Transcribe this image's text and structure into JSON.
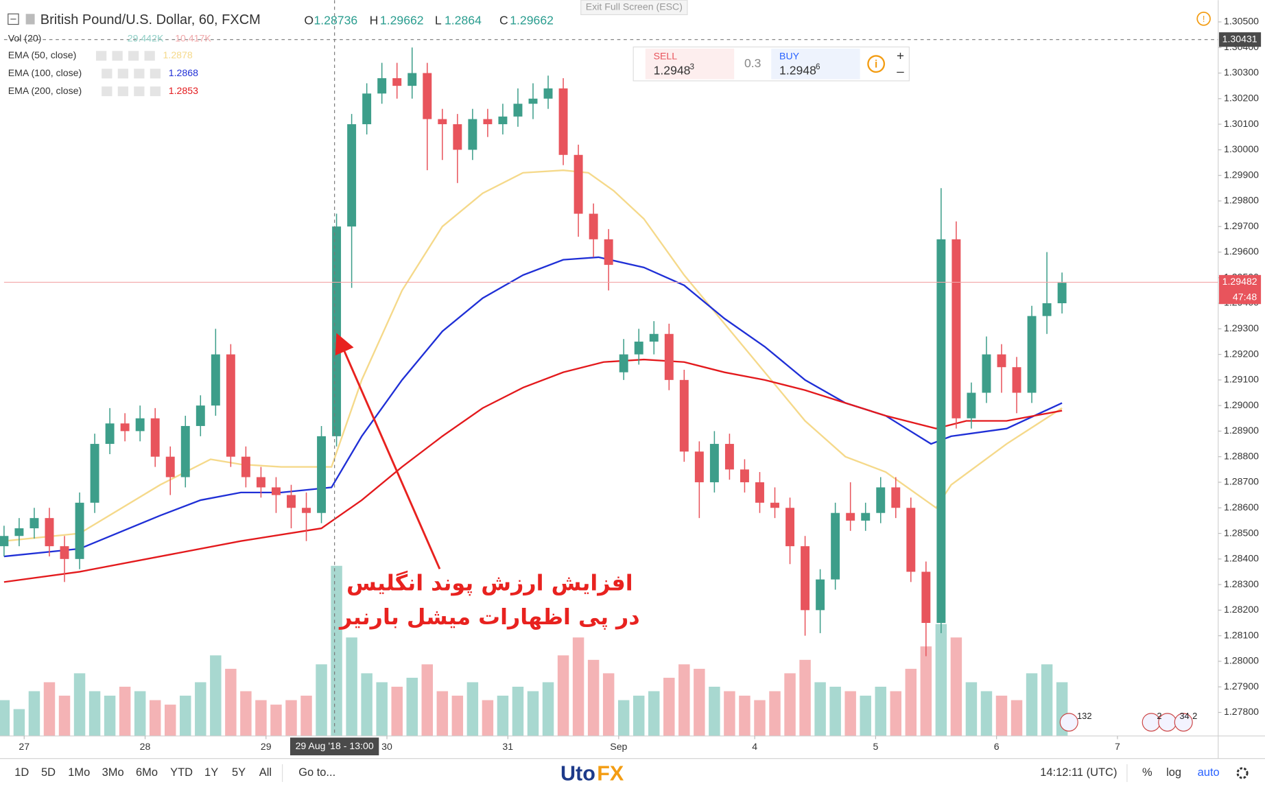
{
  "chart_data": {
    "type": "candlestick",
    "title": "British Pound/U.S. Dollar, 60, FXCM",
    "ohlc_legend": [
      {
        "label": "O",
        "value": 1.28736
      },
      {
        "label": "H",
        "value": 1.29662
      },
      {
        "label": "L",
        "value": 1.2864
      },
      {
        "label": "C",
        "value": 1.29662
      }
    ],
    "volume_name": "Vol (20)",
    "volume_readings": [
      "29.442K",
      "10.417K"
    ],
    "exit_fullscreen": "Exit Full Screen (ESC)",
    "up_color": "#3d9e8a",
    "down_color": "#e8545c",
    "volume_up_color": "#a8d8d0",
    "volume_down_color": "#f4b3b5",
    "xlim": [
      0,
      241
    ],
    "xticks": [
      {
        "value": 4,
        "label": "27"
      },
      {
        "value": 28,
        "label": "28"
      },
      {
        "value": 52,
        "label": "29"
      },
      {
        "value": 76,
        "label": "30"
      },
      {
        "value": 100,
        "label": "31"
      },
      {
        "value": 122,
        "label": "Sep"
      },
      {
        "value": 149,
        "label": "4"
      },
      {
        "value": 173,
        "label": "5"
      },
      {
        "value": 197,
        "label": "6"
      },
      {
        "value": 221,
        "label": "7"
      }
    ],
    "ylim": [
      1.27708,
      1.30585
    ],
    "yticks": [
      {
        "value": 1.305,
        "label": "1.30500"
      },
      {
        "value": 1.304,
        "label": "1.30400"
      },
      {
        "value": 1.303,
        "label": "1.30300"
      },
      {
        "value": 1.302,
        "label": "1.30200"
      },
      {
        "value": 1.301,
        "label": "1.30100"
      },
      {
        "value": 1.3,
        "label": "1.30000"
      },
      {
        "value": 1.299,
        "label": "1.29900"
      },
      {
        "value": 1.298,
        "label": "1.29800"
      },
      {
        "value": 1.297,
        "label": "1.29700"
      },
      {
        "value": 1.296,
        "label": "1.29600"
      },
      {
        "value": 1.295,
        "label": "1.29500"
      },
      {
        "value": 1.294,
        "label": "1.29400"
      },
      {
        "value": 1.293,
        "label": "1.29300"
      },
      {
        "value": 1.292,
        "label": "1.29200"
      },
      {
        "value": 1.291,
        "label": "1.29100"
      },
      {
        "value": 1.29,
        "label": "1.29000"
      },
      {
        "value": 1.289,
        "label": "1.28900"
      },
      {
        "value": 1.288,
        "label": "1.28800"
      },
      {
        "value": 1.287,
        "label": "1.28700"
      },
      {
        "value": 1.286,
        "label": "1.28600"
      },
      {
        "value": 1.285,
        "label": "1.28500"
      },
      {
        "value": 1.284,
        "label": "1.28400"
      },
      {
        "value": 1.283,
        "label": "1.28300"
      },
      {
        "value": 1.282,
        "label": "1.28200"
      },
      {
        "value": 1.281,
        "label": "1.28100"
      },
      {
        "value": 1.28,
        "label": "1.28000"
      },
      {
        "value": 1.279,
        "label": "1.27900"
      },
      {
        "value": 1.278,
        "label": "1.27800"
      }
    ],
    "grid": false,
    "log_scale": false,
    "volume_ylim": [
      0,
      40
    ],
    "candles": {
      "x": [
        0,
        3,
        6,
        9,
        12,
        15,
        18,
        21,
        24,
        27,
        30,
        33,
        36,
        39,
        42,
        45,
        48,
        51,
        54,
        57,
        60,
        63,
        66,
        69,
        72,
        75,
        78,
        81,
        84,
        87,
        90,
        93,
        96,
        99,
        102,
        105,
        108,
        111,
        114,
        117,
        120,
        123,
        126,
        129,
        132,
        135,
        138,
        141,
        144,
        147,
        150,
        153,
        156,
        159,
        162,
        165,
        168,
        171,
        174,
        177,
        180,
        183,
        186,
        189,
        192,
        195,
        198,
        201,
        204,
        207,
        210
      ],
      "open": [
        1.2845,
        1.2849,
        1.2852,
        1.2856,
        1.2845,
        1.284,
        1.2862,
        1.2885,
        1.2893,
        1.289,
        1.2895,
        1.288,
        1.2872,
        1.2892,
        1.29,
        1.292,
        1.288,
        1.2872,
        1.2868,
        1.2865,
        1.286,
        1.2858,
        1.2888,
        1.297,
        1.301,
        1.3022,
        1.3028,
        1.3025,
        1.303,
        1.3012,
        1.301,
        1.3,
        1.3012,
        1.301,
        1.3013,
        1.3018,
        1.302,
        1.3024,
        1.2998,
        1.2975,
        1.2965,
        1.2913,
        1.292,
        1.2925,
        1.2928,
        1.291,
        1.2882,
        1.287,
        1.2885,
        1.2875,
        1.287,
        1.2862,
        1.286,
        1.2845,
        1.282,
        1.2832,
        1.2858,
        1.2855,
        1.2858,
        1.2868,
        1.286,
        1.2835,
        1.2815,
        1.2965,
        1.2895,
        1.2905,
        1.292,
        1.2915,
        1.2905,
        1.2935,
        1.294
      ],
      "high": [
        1.2853,
        1.2856,
        1.286,
        1.286,
        1.2849,
        1.2866,
        1.2889,
        1.2899,
        1.2897,
        1.29,
        1.2899,
        1.2884,
        1.2896,
        1.2904,
        1.293,
        1.2924,
        1.2884,
        1.2876,
        1.2872,
        1.2869,
        1.2866,
        1.2892,
        1.2975,
        1.3014,
        1.3026,
        1.3034,
        1.3034,
        1.304,
        1.3034,
        1.3016,
        1.3014,
        1.3016,
        1.3016,
        1.3018,
        1.3024,
        1.3026,
        1.3029,
        1.3028,
        1.3002,
        1.2979,
        1.2969,
        1.2926,
        1.293,
        1.2933,
        1.2932,
        1.2914,
        1.2886,
        1.289,
        1.2889,
        1.2879,
        1.2874,
        1.2868,
        1.2864,
        1.2849,
        1.2836,
        1.2862,
        1.287,
        1.2862,
        1.2872,
        1.2872,
        1.2864,
        1.2839,
        1.2985,
        1.2972,
        1.2909,
        1.2927,
        1.2924,
        1.2919,
        1.2939,
        1.296,
        1.2952
      ],
      "low": [
        1.2841,
        1.2845,
        1.2848,
        1.2841,
        1.2831,
        1.2836,
        1.2858,
        1.2881,
        1.2886,
        1.2886,
        1.2876,
        1.2865,
        1.2868,
        1.2888,
        1.2896,
        1.2876,
        1.2868,
        1.2864,
        1.2858,
        1.2852,
        1.2847,
        1.2854,
        1.2884,
        1.2946,
        1.3006,
        1.3018,
        1.302,
        1.302,
        1.2992,
        1.2996,
        1.2987,
        1.2996,
        1.3005,
        1.3006,
        1.3009,
        1.3012,
        1.3016,
        1.2994,
        1.2966,
        1.2958,
        1.2945,
        1.291,
        1.2916,
        1.292,
        1.2906,
        1.2878,
        1.2856,
        1.2866,
        1.2871,
        1.2866,
        1.2858,
        1.2856,
        1.2838,
        1.281,
        1.2811,
        1.2828,
        1.2851,
        1.2851,
        1.2854,
        1.2856,
        1.2831,
        1.2802,
        1.2811,
        1.2891,
        1.2891,
        1.2901,
        1.2905,
        1.2897,
        1.2901,
        1.2928,
        1.2936
      ],
      "close": [
        1.2849,
        1.2852,
        1.2856,
        1.2845,
        1.284,
        1.2862,
        1.2885,
        1.2893,
        1.289,
        1.2895,
        1.288,
        1.2872,
        1.2892,
        1.29,
        1.292,
        1.288,
        1.2872,
        1.2868,
        1.2865,
        1.286,
        1.2858,
        1.2888,
        1.297,
        1.301,
        1.3022,
        1.3028,
        1.3025,
        1.303,
        1.3012,
        1.301,
        1.3,
        1.3012,
        1.301,
        1.3013,
        1.3018,
        1.302,
        1.3024,
        1.2998,
        1.2975,
        1.2965,
        1.2955,
        1.292,
        1.2925,
        1.2928,
        1.291,
        1.2882,
        1.287,
        1.2885,
        1.2875,
        1.287,
        1.2862,
        1.286,
        1.2845,
        1.282,
        1.2832,
        1.2858,
        1.2855,
        1.2858,
        1.2868,
        1.286,
        1.2835,
        1.2815,
        1.2965,
        1.2895,
        1.2905,
        1.292,
        1.2915,
        1.2905,
        1.2935,
        1.294,
        1.2948
      ],
      "volume": [
        8,
        6,
        10,
        12,
        9,
        14,
        10,
        9,
        11,
        10,
        8,
        7,
        9,
        12,
        18,
        15,
        10,
        8,
        7,
        8,
        9,
        16,
        38,
        22,
        14,
        12,
        11,
        13,
        16,
        10,
        9,
        12,
        8,
        9,
        11,
        10,
        12,
        18,
        22,
        17,
        14,
        8,
        9,
        10,
        13,
        16,
        15,
        11,
        10,
        9,
        8,
        10,
        14,
        17,
        12,
        11,
        10,
        9,
        11,
        10,
        15,
        20,
        25,
        22,
        12,
        10,
        9,
        8,
        14,
        16,
        12
      ]
    },
    "indicators": [
      {
        "name": "EMA (50, close)",
        "value": 1.2878,
        "color": "#f5d98a",
        "x": [
          0,
          15,
          31,
          41,
          47,
          55,
          65,
          71,
          79,
          87,
          95,
          103,
          111,
          116,
          121,
          127,
          135,
          143,
          151,
          159,
          167,
          175,
          185,
          188,
          199,
          210
        ],
        "values": [
          1.2847,
          1.285,
          1.2869,
          1.2879,
          1.2877,
          1.2876,
          1.2876,
          1.291,
          1.2945,
          1.297,
          1.2983,
          1.2991,
          1.2992,
          1.2991,
          1.2984,
          1.2973,
          1.2951,
          1.2932,
          1.2913,
          1.2894,
          1.288,
          1.2874,
          1.286,
          1.2869,
          1.2885,
          1.2899
        ]
      },
      {
        "name": "EMA (100, close)",
        "value": 1.2868,
        "color": "#1f2fd6",
        "x": [
          0,
          15,
          31,
          39,
          47,
          55,
          65,
          71,
          79,
          87,
          95,
          103,
          111,
          118,
          127,
          135,
          143,
          151,
          159,
          167,
          175,
          184,
          188,
          199,
          210
        ],
        "values": [
          1.2841,
          1.2844,
          1.2857,
          1.2863,
          1.2866,
          1.2866,
          1.2868,
          1.2888,
          1.291,
          1.2929,
          1.2942,
          1.2951,
          1.2957,
          1.2958,
          1.2954,
          1.2947,
          1.2934,
          1.2923,
          1.291,
          1.2901,
          1.2896,
          1.2885,
          1.2888,
          1.2891,
          1.2901
        ]
      },
      {
        "name": "EMA (200, close)",
        "value": 1.2853,
        "color": "#e3191c",
        "x": [
          0,
          15,
          31,
          47,
          63,
          71,
          79,
          87,
          95,
          103,
          111,
          119,
          127,
          135,
          143,
          151,
          159,
          167,
          175,
          185,
          191,
          199,
          210
        ],
        "values": [
          1.2831,
          1.2835,
          1.2841,
          1.2847,
          1.2852,
          1.2863,
          1.2876,
          1.2888,
          1.2899,
          1.2907,
          1.2913,
          1.2917,
          1.2918,
          1.2917,
          1.2913,
          1.291,
          1.2906,
          1.2901,
          1.2896,
          1.2891,
          1.2894,
          1.2894,
          1.2898
        ]
      }
    ],
    "last_price": 1.29482,
    "last_price_countdown": "47:48",
    "crosshair": {
      "x": 65.6,
      "price": 1.30431,
      "time_label": "29 Aug '18 - 13:00"
    },
    "trade_panel": {
      "sell_label": "SELL",
      "sell_price": 1.2948,
      "sell_pip": 3,
      "spread": 0.3,
      "buy_label": "BUY",
      "buy_price": 1.2948,
      "buy_pip": 6
    },
    "annotation": [
      "افزایش ارزش پوند انگلیس",
      "در پی اظهارات میشل بارنیر"
    ],
    "event_counts": [
      132,
      2,
      34,
      2
    ],
    "toolbar": {
      "ranges": [
        "1D",
        "5D",
        "1Mo",
        "3Mo",
        "6Mo",
        "YTD",
        "1Y",
        "5Y",
        "All"
      ],
      "goto": "Go to...",
      "clock": "14:12:11 (UTC)",
      "options": [
        "%",
        "log",
        "auto"
      ]
    },
    "logo": [
      "Uto",
      "FX"
    ]
  }
}
